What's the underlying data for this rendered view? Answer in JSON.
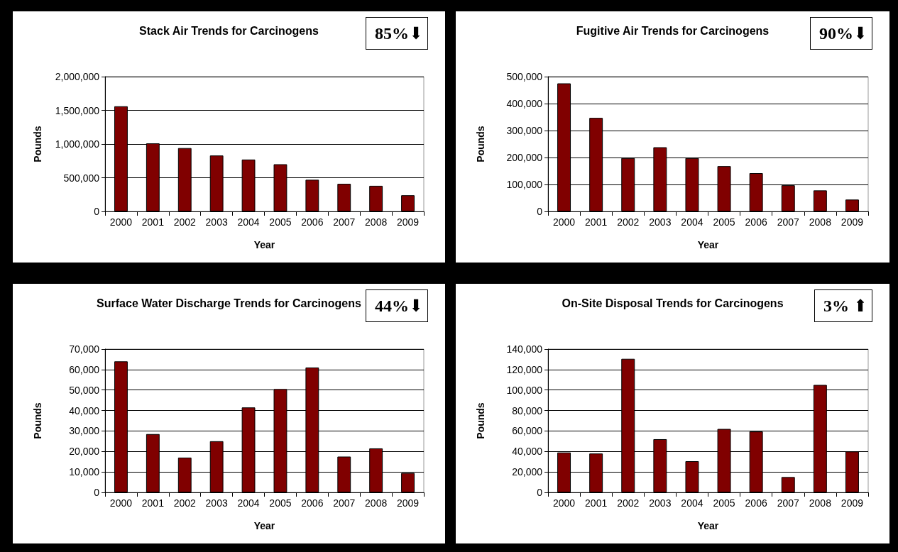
{
  "chart_data": [
    {
      "type": "bar",
      "title": "Stack Air Trends for Carcinogens",
      "xlabel": "Year",
      "ylabel": "Pounds",
      "annotations": [
        "85%⬇"
      ],
      "categories": [
        "2000",
        "2001",
        "2002",
        "2003",
        "2004",
        "2005",
        "2006",
        "2007",
        "2008",
        "2009"
      ],
      "color": "#800000",
      "values": [
        1560000,
        1010000,
        940000,
        830000,
        770000,
        700000,
        470000,
        410000,
        380000,
        240000
      ],
      "ylim": [
        0,
        2000000
      ],
      "yticks": [
        {
          "value": 0,
          "label": "0"
        },
        {
          "value": 500000,
          "label": "500,000"
        },
        {
          "value": 1000000,
          "label": "1,000,000"
        },
        {
          "value": 1500000,
          "label": "1,500,000"
        },
        {
          "value": 2000000,
          "label": "2,000,000"
        }
      ],
      "grid": "y"
    },
    {
      "type": "bar",
      "title": "Fugitive Air Trends for Carcinogens",
      "xlabel": "Year",
      "ylabel": "Pounds",
      "annotations": [
        "90%⬇"
      ],
      "categories": [
        "2000",
        "2001",
        "2002",
        "2003",
        "2004",
        "2005",
        "2006",
        "2007",
        "2008",
        "2009"
      ],
      "color": "#800000",
      "values": [
        475000,
        347000,
        198000,
        238000,
        198000,
        168000,
        142000,
        97000,
        78000,
        44000
      ],
      "ylim": [
        0,
        500000
      ],
      "yticks": [
        {
          "value": 0,
          "label": "0"
        },
        {
          "value": 100000,
          "label": "100,000"
        },
        {
          "value": 200000,
          "label": "200,000"
        },
        {
          "value": 300000,
          "label": "300,000"
        },
        {
          "value": 400000,
          "label": "400,000"
        },
        {
          "value": 500000,
          "label": "500,000"
        }
      ],
      "grid": "y"
    },
    {
      "type": "bar",
      "title": "Surface Water Discharge Trends for Carcinogens",
      "xlabel": "Year",
      "ylabel": "Pounds",
      "annotations": [
        "44%⬇"
      ],
      "categories": [
        "2000",
        "2001",
        "2002",
        "2003",
        "2004",
        "2005",
        "2006",
        "2007",
        "2008",
        "2009"
      ],
      "color": "#800000",
      "values": [
        64000,
        28500,
        17000,
        25000,
        41500,
        50500,
        61000,
        17500,
        21500,
        9500
      ],
      "ylim": [
        0,
        70000
      ],
      "yticks": [
        {
          "value": 0,
          "label": "0"
        },
        {
          "value": 10000,
          "label": "10,000"
        },
        {
          "value": 20000,
          "label": "20,000"
        },
        {
          "value": 30000,
          "label": "30,000"
        },
        {
          "value": 40000,
          "label": "40,000"
        },
        {
          "value": 50000,
          "label": "50,000"
        },
        {
          "value": 60000,
          "label": "60,000"
        },
        {
          "value": 70000,
          "label": "70,000"
        }
      ],
      "grid": "y"
    },
    {
      "type": "bar",
      "title": "On-Site Disposal Trends for Carcinogens",
      "xlabel": "Year",
      "ylabel": "Pounds",
      "annotations": [
        "3% ⬆"
      ],
      "categories": [
        "2000",
        "2001",
        "2002",
        "2003",
        "2004",
        "2005",
        "2006",
        "2007",
        "2008",
        "2009"
      ],
      "color": "#800000",
      "values": [
        39000,
        38000,
        130500,
        52000,
        30500,
        62000,
        59500,
        15000,
        105000,
        40000
      ],
      "ylim": [
        0,
        140000
      ],
      "yticks": [
        {
          "value": 0,
          "label": "0"
        },
        {
          "value": 20000,
          "label": "20,000"
        },
        {
          "value": 40000,
          "label": "40,000"
        },
        {
          "value": 60000,
          "label": "60,000"
        },
        {
          "value": 80000,
          "label": "80,000"
        },
        {
          "value": 100000,
          "label": "100,000"
        },
        {
          "value": 120000,
          "label": "120,000"
        },
        {
          "value": 140000,
          "label": "140,000"
        }
      ],
      "grid": "y"
    }
  ]
}
